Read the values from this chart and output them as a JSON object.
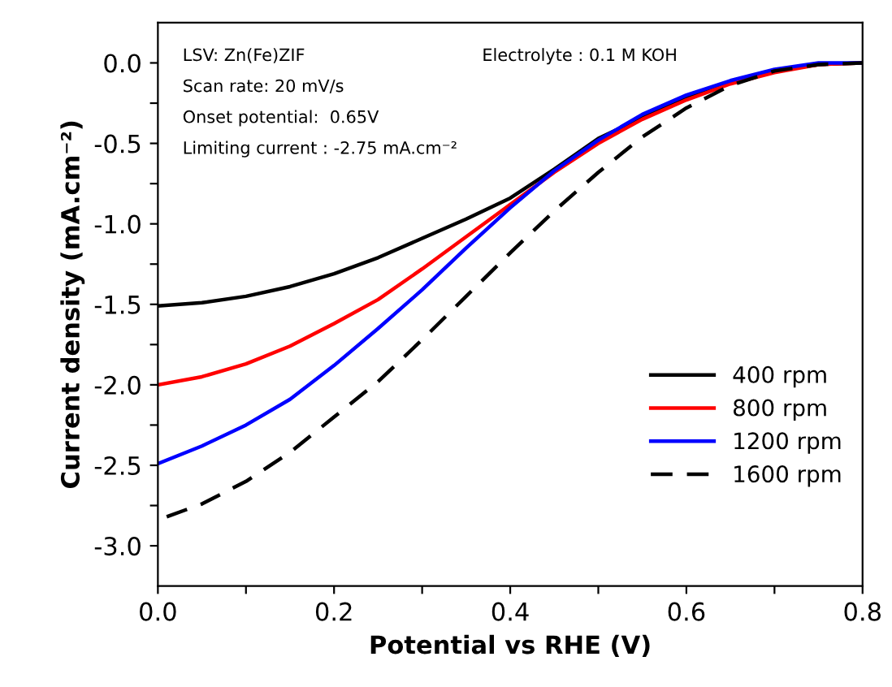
{
  "chart_data": {
    "type": "line",
    "xlabel": "Potential vs RHE (V)",
    "ylabel": "Current density (mA.cm⁻²)",
    "annotations": [
      "LSV: Zn(Fe)ZIF",
      "Scan rate: 20 mV/s",
      "Onset potential:  0.65V",
      "Limiting current : -2.75 mA.cm⁻²",
      "Electrolyte : 0.1 M KOH"
    ],
    "xlim": [
      0,
      0.8
    ],
    "ylim": [
      -3.25,
      0.25
    ],
    "xticks": [
      {
        "value": 0,
        "label": "0.0"
      },
      {
        "value": 0.1,
        "label": null
      },
      {
        "value": 0.2,
        "label": "0.2"
      },
      {
        "value": 0.3,
        "label": null
      },
      {
        "value": 0.4,
        "label": "0.4"
      },
      {
        "value": 0.5,
        "label": null
      },
      {
        "value": 0.6,
        "label": "0.6"
      },
      {
        "value": 0.7,
        "label": null
      },
      {
        "value": 0.8,
        "label": "0.8"
      }
    ],
    "yticks": [
      {
        "value": -3.0,
        "label": "-3.0"
      },
      {
        "value": -2.75,
        "label": null
      },
      {
        "value": -2.5,
        "label": "-2.5"
      },
      {
        "value": -2.25,
        "label": null
      },
      {
        "value": -2.0,
        "label": "-2.0"
      },
      {
        "value": -1.75,
        "label": null
      },
      {
        "value": -1.5,
        "label": "-1.5"
      },
      {
        "value": -1.25,
        "label": null
      },
      {
        "value": -1.0,
        "label": "-1.0"
      },
      {
        "value": -0.75,
        "label": null
      },
      {
        "value": -0.5,
        "label": "-0.5"
      },
      {
        "value": -0.25,
        "label": null
      },
      {
        "value": 0.0,
        "label": "0.0"
      }
    ],
    "grid": false,
    "legend": "bottom right",
    "x": [
      0,
      0.05,
      0.1,
      0.15,
      0.2,
      0.25,
      0.3,
      0.35,
      0.4,
      0.45,
      0.5,
      0.55,
      0.6,
      0.65,
      0.7,
      0.75,
      0.8
    ],
    "series": [
      {
        "name": "400 rpm",
        "color": "#000000",
        "line_style": "solid",
        "values": [
          -1.51,
          -1.49,
          -1.45,
          -1.39,
          -1.31,
          -1.21,
          -1.09,
          -0.97,
          -0.84,
          -0.66,
          -0.47,
          -0.34,
          -0.22,
          -0.12,
          -0.05,
          -0.01,
          0
        ]
      },
      {
        "name": "800 rpm",
        "color": "#ff0000",
        "line_style": "solid",
        "values": [
          -2.0,
          -1.95,
          -1.87,
          -1.76,
          -1.62,
          -1.47,
          -1.28,
          -1.08,
          -0.88,
          -0.68,
          -0.5,
          -0.35,
          -0.23,
          -0.13,
          -0.06,
          -0.01,
          0
        ]
      },
      {
        "name": "1200 rpm",
        "color": "#0000ff",
        "line_style": "solid",
        "values": [
          -2.49,
          -2.38,
          -2.25,
          -2.09,
          -1.88,
          -1.65,
          -1.41,
          -1.15,
          -0.9,
          -0.67,
          -0.48,
          -0.32,
          -0.2,
          -0.11,
          -0.04,
          0,
          0
        ]
      },
      {
        "name": "1600 rpm",
        "color": "#000000",
        "line_style": "dashed",
        "x": [
          0.01,
          0.05,
          0.1,
          0.15,
          0.2,
          0.25,
          0.3,
          0.35,
          0.4,
          0.45,
          0.5,
          0.55,
          0.6,
          0.65,
          0.7,
          0.75,
          0.8
        ],
        "values": [
          -2.82,
          -2.74,
          -2.6,
          -2.42,
          -2.2,
          -1.98,
          -1.72,
          -1.45,
          -1.18,
          -0.92,
          -0.68,
          -0.46,
          -0.28,
          -0.14,
          -0.05,
          -0.01,
          0
        ]
      }
    ]
  }
}
